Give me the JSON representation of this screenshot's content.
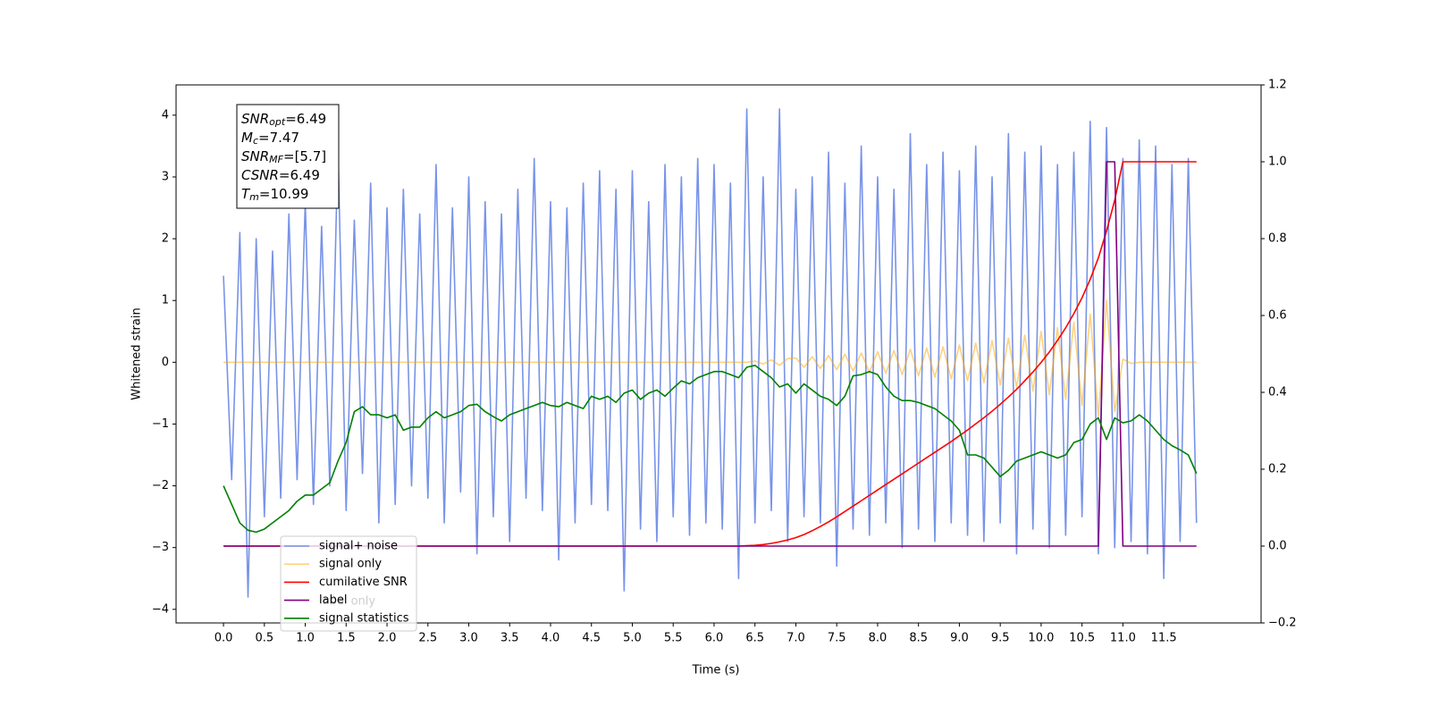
{
  "chart_data": {
    "type": "line",
    "xlabel": "Time (s)",
    "ylabel": "Whitened strain",
    "xlim": [
      -0.58,
      12.69
    ],
    "ylim": [
      -4.22,
      4.49
    ],
    "y2lim": [
      -0.2,
      1.2
    ],
    "xticks": [
      {
        "value": 0,
        "label": "0.0"
      },
      0.5,
      {
        "value": 1,
        "label": "1.0"
      },
      1.5,
      {
        "value": 2,
        "label": "2.0"
      },
      2.5,
      {
        "value": 3,
        "label": "3.0"
      },
      3.5,
      {
        "value": 4,
        "label": "4.0"
      },
      4.5,
      {
        "value": 5,
        "label": "5.0"
      },
      5.5,
      {
        "value": 6,
        "label": "6.0"
      },
      6.5,
      {
        "value": 7,
        "label": "7.0"
      },
      7.5,
      {
        "value": 8,
        "label": "8.0"
      },
      8.5,
      {
        "value": 9,
        "label": "9.0"
      },
      9.5,
      {
        "value": 10,
        "label": "10.0"
      },
      10.5,
      {
        "value": 11,
        "label": "11.0"
      },
      11.5
    ],
    "yticks": [
      {
        "value": -4,
        "label": "−4"
      },
      {
        "value": -3,
        "label": "−3"
      },
      {
        "value": -2,
        "label": "−2"
      },
      {
        "value": -1,
        "label": "−1"
      },
      0,
      1,
      2,
      3,
      4
    ],
    "y2ticks": [
      {
        "value": -0.2,
        "label": "−0.2"
      },
      {
        "value": 0,
        "label": "0.0"
      },
      0.2,
      0.4,
      0.6,
      0.8,
      {
        "value": 1,
        "label": "1.0"
      },
      1.2
    ],
    "legend_position": "lower left",
    "legend_overlay_text": "label only",
    "annotation": [
      {
        "symbol": "SNR",
        "subscript": "opt",
        "text": "=6.49"
      },
      {
        "symbol": "M",
        "subscript": "c",
        "text": "=7.47"
      },
      {
        "symbol": "SNR",
        "subscript": "MF",
        "text": "=[5.7]"
      },
      {
        "symbol": "CSNR",
        "subscript": "",
        "text": "=6.49"
      },
      {
        "symbol": "T",
        "subscript": "m",
        "text": "=10.99"
      }
    ],
    "x": [
      0,
      0.1,
      0.2,
      0.3,
      0.4,
      0.5,
      0.6,
      0.7,
      0.8,
      0.9,
      1,
      1.1,
      1.2,
      1.3,
      1.4,
      1.5,
      1.6,
      1.7,
      1.8,
      1.9,
      2,
      2.1,
      2.2,
      2.3,
      2.4,
      2.5,
      2.6,
      2.7,
      2.8,
      2.9,
      3,
      3.1,
      3.2,
      3.3,
      3.4,
      3.5,
      3.6,
      3.7,
      3.8,
      3.9,
      4,
      4.1,
      4.2,
      4.3,
      4.4,
      4.5,
      4.6,
      4.7,
      4.8,
      4.9,
      5,
      5.1,
      5.2,
      5.3,
      5.4,
      5.5,
      5.6,
      5.7,
      5.8,
      5.9,
      6,
      6.1,
      6.2,
      6.3,
      6.4,
      6.5,
      6.6,
      6.7,
      6.8,
      6.9,
      7,
      7.1,
      7.2,
      7.3,
      7.4,
      7.5,
      7.6,
      7.7,
      7.8,
      7.9,
      8,
      8.1,
      8.2,
      8.3,
      8.4,
      8.5,
      8.6,
      8.7,
      8.8,
      8.9,
      9,
      9.1,
      9.2,
      9.3,
      9.4,
      9.5,
      9.6,
      9.7,
      9.8,
      9.9,
      10,
      10.1,
      10.2,
      10.3,
      10.4,
      10.5,
      10.6,
      10.7,
      10.8,
      10.9,
      11,
      11.1,
      11.2,
      11.3,
      11.4,
      11.5,
      11.6,
      11.7,
      11.8,
      11.9
    ],
    "series": [
      {
        "name": "signal+ noise",
        "color": "#7893e8",
        "opacity": 1,
        "axis": "y",
        "values": [
          1.4,
          -1.9,
          2.1,
          -3.8,
          2.0,
          -2.5,
          1.8,
          -2.2,
          2.4,
          -1.9,
          2.6,
          -2.3,
          2.2,
          -2.0,
          3.5,
          -2.4,
          2.3,
          -1.8,
          2.9,
          -2.6,
          2.5,
          -2.3,
          2.8,
          -2.0,
          2.4,
          -2.2,
          3.2,
          -2.6,
          2.5,
          -2.1,
          3.0,
          -3.1,
          2.6,
          -2.5,
          2.4,
          -2.9,
          2.8,
          -2.2,
          3.3,
          -2.4,
          2.6,
          -3.2,
          2.5,
          -2.6,
          2.9,
          -2.3,
          3.1,
          -2.4,
          2.8,
          -3.7,
          3.1,
          -2.7,
          2.6,
          -2.9,
          3.2,
          -2.5,
          3.0,
          -2.8,
          3.3,
          -2.6,
          3.2,
          -2.7,
          2.9,
          -3.5,
          4.1,
          -2.6,
          3.0,
          -2.4,
          4.1,
          -2.9,
          2.8,
          -2.5,
          3.0,
          -2.6,
          3.4,
          -3.3,
          2.9,
          -2.7,
          3.5,
          -2.8,
          3.0,
          -2.6,
          2.8,
          -3.0,
          3.7,
          -2.7,
          3.2,
          -2.9,
          3.4,
          -2.6,
          3.1,
          -2.8,
          3.5,
          -2.9,
          3.0,
          -2.6,
          3.7,
          -3.1,
          3.4,
          -2.7,
          3.5,
          -3.0,
          3.2,
          -2.8,
          3.4,
          -2.5,
          3.9,
          -3.1,
          3.8,
          -3.0,
          3.3,
          -2.9,
          3.6,
          -3.1,
          3.5,
          -3.5,
          3.2,
          -2.9,
          3.3,
          -2.6
        ]
      },
      {
        "name": "signal only",
        "color": "#ffa500",
        "opacity": 0.5,
        "axis": "y",
        "values": [
          0,
          0,
          0,
          0,
          0,
          0,
          0,
          0,
          0,
          0,
          0,
          0,
          0,
          0,
          0,
          0,
          0,
          0,
          0,
          0,
          0,
          0,
          0,
          0,
          0,
          0,
          0,
          0,
          0,
          0,
          0,
          0,
          0,
          0,
          0,
          0,
          0,
          0,
          0,
          0,
          0,
          0,
          0,
          0,
          0,
          0,
          0,
          0,
          0,
          0,
          0,
          0,
          0,
          0,
          0,
          0,
          0,
          0,
          0,
          0,
          0,
          0,
          0,
          0,
          0,
          0.02,
          -0.03,
          0.04,
          -0.05,
          0.06,
          0.07,
          -0.08,
          0.09,
          -0.1,
          0.11,
          -0.12,
          0.13,
          -0.14,
          0.15,
          -0.16,
          0.17,
          -0.18,
          0.19,
          -0.2,
          0.21,
          -0.22,
          0.23,
          -0.24,
          0.25,
          -0.27,
          0.28,
          -0.3,
          0.31,
          -0.33,
          0.35,
          -0.37,
          0.39,
          -0.41,
          0.44,
          -0.47,
          0.5,
          -0.53,
          0.56,
          -0.6,
          0.65,
          -0.7,
          0.78,
          -0.88,
          1.0,
          -0.8,
          0.05,
          -0.02,
          0,
          0,
          0,
          0,
          0,
          0,
          0,
          0
        ]
      },
      {
        "name": "cumilative SNR",
        "color": "#ff0000",
        "opacity": 1,
        "axis": "y2",
        "values": [
          0,
          0,
          0,
          0,
          0,
          0,
          0,
          0,
          0,
          0,
          0,
          0,
          0,
          0,
          0,
          0,
          0,
          0,
          0,
          0,
          0,
          0,
          0,
          0,
          0,
          0,
          0,
          0,
          0,
          0,
          0,
          0,
          0,
          0,
          0,
          0,
          0,
          0,
          0,
          0,
          0,
          0,
          0,
          0,
          0,
          0,
          0,
          0,
          0,
          0,
          0,
          0,
          0,
          0,
          0,
          0,
          0,
          0,
          0,
          0,
          0,
          0,
          0,
          0,
          0.001,
          0.002,
          0.004,
          0.007,
          0.011,
          0.016,
          0.022,
          0.03,
          0.04,
          0.051,
          0.063,
          0.076,
          0.09,
          0.104,
          0.118,
          0.132,
          0.146,
          0.16,
          0.174,
          0.188,
          0.202,
          0.216,
          0.23,
          0.244,
          0.258,
          0.272,
          0.287,
          0.302,
          0.318,
          0.334,
          0.351,
          0.369,
          0.388,
          0.408,
          0.43,
          0.453,
          0.478,
          0.505,
          0.535,
          0.568,
          0.605,
          0.646,
          0.694,
          0.75,
          0.82,
          0.9,
          1.0,
          1.0,
          1.0,
          1.0,
          1.0,
          1.0,
          1.0,
          1.0,
          1.0,
          1.0
        ]
      },
      {
        "name": "label",
        "color": "#800080",
        "opacity": 1,
        "axis": "y2",
        "values": [
          0,
          0,
          0,
          0,
          0,
          0,
          0,
          0,
          0,
          0,
          0,
          0,
          0,
          0,
          0,
          0,
          0,
          0,
          0,
          0,
          0,
          0,
          0,
          0,
          0,
          0,
          0,
          0,
          0,
          0,
          0,
          0,
          0,
          0,
          0,
          0,
          0,
          0,
          0,
          0,
          0,
          0,
          0,
          0,
          0,
          0,
          0,
          0,
          0,
          0,
          0,
          0,
          0,
          0,
          0,
          0,
          0,
          0,
          0,
          0,
          0,
          0,
          0,
          0,
          0,
          0,
          0,
          0,
          0,
          0,
          0,
          0,
          0,
          0,
          0,
          0,
          0,
          0,
          0,
          0,
          0,
          0,
          0,
          0,
          0,
          0,
          0,
          0,
          0,
          0,
          0,
          0,
          0,
          0,
          0,
          0,
          0,
          0,
          0,
          0,
          0,
          0,
          0,
          0,
          0,
          0,
          0,
          0,
          1,
          1,
          0,
          0,
          0,
          0,
          0,
          0,
          0,
          0,
          0,
          0
        ]
      },
      {
        "name": "signal statistics",
        "color": "#008000",
        "opacity": 1,
        "axis": "y",
        "values": [
          -2.0,
          -2.3,
          -2.6,
          -2.72,
          -2.75,
          -2.7,
          -2.6,
          -2.5,
          -2.4,
          -2.25,
          -2.15,
          -2.15,
          -2.05,
          -1.95,
          -1.6,
          -1.3,
          -0.8,
          -0.72,
          -0.85,
          -0.85,
          -0.9,
          -0.85,
          -1.1,
          -1.05,
          -1.05,
          -0.9,
          -0.8,
          -0.9,
          -0.85,
          -0.8,
          -0.7,
          -0.68,
          -0.8,
          -0.88,
          -0.95,
          -0.85,
          -0.8,
          -0.75,
          -0.7,
          -0.65,
          -0.7,
          -0.72,
          -0.65,
          -0.7,
          -0.75,
          -0.55,
          -0.6,
          -0.55,
          -0.65,
          -0.5,
          -0.45,
          -0.6,
          -0.5,
          -0.45,
          -0.55,
          -0.42,
          -0.3,
          -0.35,
          -0.25,
          -0.2,
          -0.15,
          -0.15,
          -0.2,
          -0.25,
          -0.08,
          -0.05,
          -0.15,
          -0.25,
          -0.4,
          -0.35,
          -0.5,
          -0.35,
          -0.45,
          -0.55,
          -0.6,
          -0.7,
          -0.55,
          -0.22,
          -0.2,
          -0.15,
          -0.2,
          -0.4,
          -0.55,
          -0.62,
          -0.62,
          -0.65,
          -0.7,
          -0.75,
          -0.85,
          -0.95,
          -1.1,
          -1.5,
          -1.5,
          -1.55,
          -1.7,
          -1.85,
          -1.75,
          -1.6,
          -1.55,
          -1.5,
          -1.45,
          -1.5,
          -1.55,
          -1.5,
          -1.3,
          -1.25,
          -1.0,
          -0.9,
          -1.25,
          -0.9,
          -0.98,
          -0.95,
          -0.85,
          -0.95,
          -1.1,
          -1.25,
          -1.35,
          -1.42,
          -1.5,
          -1.8
        ]
      }
    ]
  }
}
